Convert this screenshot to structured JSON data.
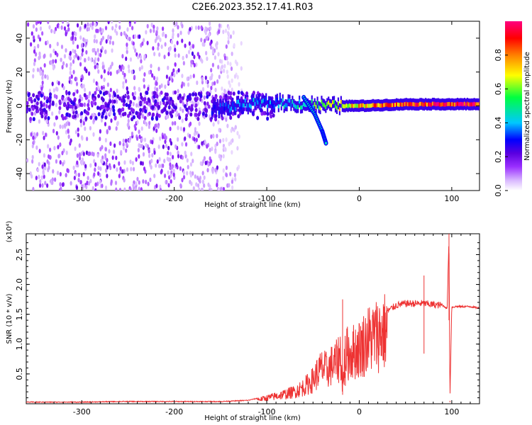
{
  "title": "C2E6.2023.352.17.41.R03",
  "chart_data": [
    {
      "type": "heatmap",
      "xlabel": "Height of straight line (km)",
      "ylabel": "Frequency (Hz)",
      "xlim": [
        -360,
        130
      ],
      "ylim": [
        -50,
        50
      ],
      "xticks": [
        -300,
        -200,
        -100,
        0,
        100
      ],
      "yticks": [
        -40,
        -20,
        0,
        20,
        40
      ],
      "colorbar": {
        "label": "Normalized spectral amplitude",
        "range": [
          0,
          1
        ],
        "ticks": [
          0.0,
          0.2,
          0.4,
          0.6,
          0.8
        ],
        "colors": [
          "#ffffff",
          "#d9b8ff",
          "#9b30ff",
          "#5a00e0",
          "#0000ff",
          "#00c8ff",
          "#00ff40",
          "#ffff00",
          "#ff8000",
          "#ff0000",
          "#ff0080"
        ]
      },
      "features": {
        "noise_region_x": [
          -360,
          -130
        ],
        "signal_band": [
          {
            "x": -160,
            "f": -2,
            "amp": 0.3
          },
          {
            "x": -120,
            "f": 1,
            "amp": 0.4
          },
          {
            "x": -90,
            "f": 2,
            "amp": 0.4
          },
          {
            "x": -60,
            "f": 1,
            "amp": 0.5
          },
          {
            "x": -30,
            "f": 0,
            "amp": 0.7
          },
          {
            "x": 0,
            "f": 0,
            "amp": 0.8
          },
          {
            "x": 50,
            "f": 1,
            "amp": 0.9
          },
          {
            "x": 100,
            "f": 1,
            "amp": 1.0
          },
          {
            "x": 130,
            "f": 1,
            "amp": 1.0
          }
        ],
        "drift_branch": [
          {
            "x": -60,
            "f": 5
          },
          {
            "x": -48,
            "f": -5
          },
          {
            "x": -40,
            "f": -15
          },
          {
            "x": -36,
            "f": -22
          }
        ]
      }
    },
    {
      "type": "line",
      "xlabel": "Height of straight line (km)",
      "ylabel": "SNR (10 * v/v)",
      "multiplier": "(x10⁴)",
      "xlim": [
        -360,
        130
      ],
      "ylim": [
        0,
        2.85
      ],
      "xticks": [
        -300,
        -200,
        -100,
        0,
        100
      ],
      "yticks": [
        0.5,
        1.0,
        1.5,
        2.0,
        2.5
      ],
      "line_color": "#ee3333",
      "series": [
        {
          "x": [
            -360,
            -300,
            -260,
            -200,
            -150,
            -120,
            -100,
            -80,
            -70,
            -60,
            -50,
            -45,
            -40,
            -35,
            -30,
            -25,
            -20,
            -18,
            -15,
            -10,
            -5,
            0,
            10,
            20,
            30,
            40,
            50,
            60,
            70,
            80,
            90,
            95,
            97,
            98,
            100,
            105,
            110,
            120,
            130
          ],
          "y": [
            0.02,
            0.02,
            0.03,
            0.03,
            0.03,
            0.05,
            0.12,
            0.2,
            0.25,
            0.35,
            0.5,
            0.65,
            0.75,
            0.7,
            0.8,
            0.85,
            1.05,
            0.3,
            1.05,
            1.05,
            1.1,
            1.15,
            1.35,
            1.45,
            1.55,
            1.65,
            1.68,
            1.68,
            1.68,
            1.66,
            1.65,
            1.6,
            2.8,
            0.05,
            1.62,
            1.63,
            1.63,
            1.63,
            1.6
          ]
        }
      ]
    }
  ]
}
